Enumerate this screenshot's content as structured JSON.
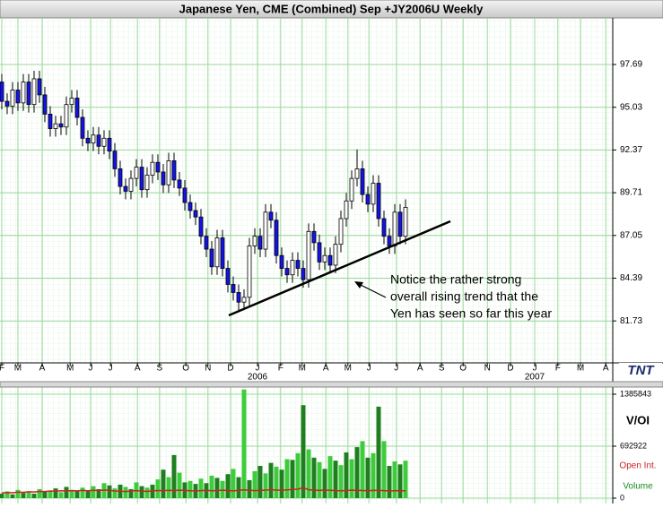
{
  "chart_data": [
    {
      "type": "candlestick",
      "title": "Japanese Yen, CME (Combined) Sep +JY2006U Weekly",
      "x": [
        0,
        1,
        2,
        3,
        4,
        5,
        6,
        7,
        8,
        9,
        10,
        11,
        12,
        13,
        14,
        15,
        16,
        17,
        18,
        19,
        20,
        21,
        22,
        23,
        24,
        25,
        26,
        27,
        28,
        29,
        30,
        31,
        32,
        33,
        34,
        35,
        36,
        37,
        38,
        39,
        40,
        41,
        42,
        43,
        44,
        45,
        46,
        47,
        48,
        49,
        50,
        51,
        52,
        53,
        54,
        55,
        56,
        57,
        58,
        59,
        60,
        61,
        62,
        63,
        64,
        65,
        66,
        67,
        68,
        69,
        70,
        71,
        72,
        73,
        74,
        75
      ],
      "open": [
        96.6,
        95.4,
        95.1,
        96.1,
        95.3,
        96.6,
        95.2,
        96.8,
        95.8,
        94.6,
        93.7,
        94.0,
        93.8,
        95.2,
        95.6,
        94.4,
        93.1,
        92.8,
        93.3,
        92.6,
        93.1,
        92.3,
        91.2,
        90.1,
        89.8,
        90.6,
        91.3,
        89.9,
        90.8,
        91.6,
        91.0,
        90.2,
        91.7,
        90.5,
        90.0,
        89.1,
        88.6,
        88.2,
        87.0,
        86.2,
        85.1,
        86.9,
        85.0,
        84.0,
        83.5,
        82.9,
        83.2,
        86.4,
        87.0,
        86.2,
        88.5,
        88.0,
        85.8,
        85.0,
        84.6,
        85.5,
        85.0,
        84.3,
        87.3,
        86.6,
        85.4,
        85.8,
        85.2,
        86.5,
        88.1,
        89.2,
        90.6,
        91.2,
        89.6,
        89.0,
        90.3,
        88.1,
        87.0,
        86.4,
        88.5,
        87.0
      ],
      "high": [
        97.1,
        95.9,
        96.6,
        96.6,
        97.1,
        97.1,
        97.3,
        97.3,
        96.3,
        95.1,
        94.5,
        94.5,
        95.7,
        96.1,
        96.1,
        94.9,
        93.6,
        93.8,
        93.8,
        93.6,
        93.6,
        92.8,
        91.7,
        90.6,
        91.1,
        91.8,
        91.8,
        91.3,
        92.1,
        92.1,
        91.5,
        92.2,
        92.2,
        91.0,
        90.5,
        89.6,
        89.1,
        88.7,
        87.5,
        86.7,
        87.4,
        87.4,
        85.5,
        84.5,
        84.0,
        83.7,
        86.9,
        87.5,
        87.5,
        89.0,
        89.0,
        88.5,
        86.3,
        85.5,
        86.0,
        86.0,
        85.5,
        87.8,
        87.8,
        87.1,
        86.3,
        86.3,
        87.0,
        88.6,
        89.7,
        91.1,
        92.4,
        91.7,
        90.1,
        90.8,
        90.8,
        88.6,
        87.5,
        89.0,
        89.0,
        89.3
      ],
      "low": [
        94.9,
        94.6,
        94.6,
        94.8,
        94.8,
        94.7,
        94.7,
        95.3,
        94.1,
        93.2,
        93.2,
        93.3,
        93.3,
        94.7,
        93.9,
        92.6,
        92.3,
        92.3,
        92.1,
        92.1,
        91.8,
        90.7,
        89.6,
        89.3,
        89.3,
        90.1,
        89.4,
        89.4,
        90.3,
        90.5,
        89.7,
        89.7,
        90.0,
        89.5,
        88.6,
        88.1,
        87.7,
        86.5,
        85.7,
        84.6,
        84.6,
        84.5,
        83.5,
        83.0,
        82.4,
        82.4,
        82.7,
        85.9,
        85.7,
        85.7,
        87.5,
        85.3,
        84.5,
        84.1,
        84.1,
        84.5,
        83.8,
        83.8,
        86.1,
        84.9,
        84.9,
        84.7,
        84.7,
        86.0,
        87.6,
        88.7,
        90.1,
        89.1,
        88.5,
        88.5,
        87.6,
        86.5,
        85.9,
        85.9,
        86.5,
        86.5
      ],
      "close": [
        95.4,
        95.1,
        96.1,
        95.3,
        96.6,
        95.2,
        96.8,
        95.8,
        94.6,
        93.7,
        94.0,
        93.8,
        95.2,
        95.6,
        94.4,
        93.1,
        92.8,
        93.3,
        92.6,
        93.1,
        92.3,
        91.2,
        90.1,
        89.8,
        90.6,
        91.3,
        89.9,
        90.8,
        91.6,
        91.0,
        90.2,
        91.7,
        90.5,
        90.0,
        89.1,
        88.6,
        88.2,
        87.0,
        86.2,
        85.1,
        86.9,
        85.0,
        84.0,
        83.5,
        82.9,
        83.2,
        86.4,
        87.0,
        86.2,
        88.5,
        88.0,
        85.8,
        85.0,
        84.6,
        85.5,
        85.0,
        84.3,
        87.3,
        86.6,
        85.4,
        85.8,
        85.2,
        86.5,
        88.1,
        89.2,
        90.6,
        91.2,
        89.6,
        89.0,
        90.3,
        88.1,
        87.0,
        86.4,
        88.5,
        87.0,
        88.8
      ],
      "up_color": "#ffffff",
      "down_color": "#1414e6",
      "xlim": [
        -0.33,
        113.5
      ],
      "xticks": [
        {
          "value": 0,
          "label": "F"
        },
        {
          "value": 3,
          "label": "M"
        },
        {
          "value": 7.5,
          "label": "A"
        },
        {
          "value": 12.7,
          "label": "M"
        },
        {
          "value": 16.5,
          "label": "J"
        },
        {
          "value": 20.2,
          "label": "J"
        },
        {
          "value": 25.2,
          "label": "A"
        },
        {
          "value": 29.3,
          "label": "S"
        },
        {
          "value": 34.2,
          "label": "O"
        },
        {
          "value": 38.3,
          "label": "N"
        },
        {
          "value": 42.5,
          "label": "D"
        },
        {
          "value": 47.5,
          "label": "J"
        },
        {
          "value": 51.8,
          "label": "F"
        },
        {
          "value": 55.8,
          "label": "M"
        },
        {
          "value": 60.2,
          "label": "A"
        },
        {
          "value": 64.3,
          "label": "M"
        },
        {
          "value": 68.2,
          "label": "J"
        },
        {
          "value": 73.3,
          "label": "J"
        },
        {
          "value": 77.7,
          "label": "A"
        },
        {
          "value": 81.7,
          "label": "S"
        },
        {
          "value": 85.7,
          "label": "O"
        },
        {
          "value": 90.2,
          "label": "N"
        },
        {
          "value": 94.5,
          "label": "D"
        },
        {
          "value": 99,
          "label": "J"
        },
        {
          "value": 103.3,
          "label": "F"
        },
        {
          "value": 107.5,
          "label": "M"
        },
        {
          "value": 112.2,
          "label": "A"
        }
      ],
      "year_labels": [
        {
          "value": 47.5,
          "label": "2006"
        },
        {
          "value": 99,
          "label": "2007"
        }
      ],
      "ylim": [
        79.12,
        100.59
      ],
      "yticks": [
        81.73,
        84.39,
        87.05,
        89.71,
        92.37,
        95.03,
        97.69
      ],
      "grid": true,
      "annotation": [
        "Notice the rather strong",
        "overall rising trend that the",
        "Yen has seen so far this year"
      ],
      "logo": "TNT"
    },
    {
      "type": "volume",
      "x": [
        0,
        1,
        2,
        3,
        4,
        5,
        6,
        7,
        8,
        9,
        10,
        11,
        12,
        13,
        14,
        15,
        16,
        17,
        18,
        19,
        20,
        21,
        22,
        23,
        24,
        25,
        26,
        27,
        28,
        29,
        30,
        31,
        32,
        33,
        34,
        35,
        36,
        37,
        38,
        39,
        40,
        41,
        42,
        43,
        44,
        45,
        46,
        47,
        48,
        49,
        50,
        51,
        52,
        53,
        54,
        55,
        56,
        57,
        58,
        59,
        60,
        61,
        62,
        63,
        64,
        65,
        66,
        67,
        68,
        69,
        70,
        71,
        72,
        73,
        74,
        75
      ],
      "series": [
        {
          "name": "Volume",
          "colors": [
            "#1f7f1f",
            "#3ccc3c"
          ],
          "color": "#1a8c1a",
          "values": [
            60000,
            90000,
            50000,
            110000,
            70000,
            80000,
            60000,
            120000,
            90000,
            100000,
            130000,
            80000,
            150000,
            110000,
            90000,
            140000,
            100000,
            160000,
            120000,
            200000,
            170000,
            130000,
            180000,
            150000,
            120000,
            210000,
            160000,
            140000,
            180000,
            250000,
            380000,
            280000,
            575000,
            340000,
            210000,
            230000,
            190000,
            260000,
            200000,
            300000,
            270000,
            230000,
            320000,
            390000,
            280000,
            1450000,
            240000,
            360000,
            430000,
            330000,
            470000,
            420000,
            380000,
            520000,
            510000,
            600000,
            1240000,
            650000,
            540000,
            480000,
            390000,
            560000,
            500000,
            440000,
            610000,
            520000,
            680000,
            760000,
            540000,
            600000,
            1220000,
            760000,
            430000,
            490000,
            450000,
            500000
          ]
        },
        {
          "name": "Open Int.",
          "color": "#cc2222",
          "values": [
            70000,
            75000,
            72000,
            80000,
            78000,
            85000,
            82000,
            90000,
            88000,
            95000,
            92000,
            98000,
            96000,
            100000,
            97000,
            103000,
            99000,
            105000,
            101000,
            108000,
            104000,
            96000,
            92000,
            88000,
            95000,
            100000,
            94000,
            90000,
            97000,
            102000,
            98000,
            104000,
            100000,
            106000,
            103000,
            99000,
            95000,
            100000,
            104000,
            98000,
            102000,
            106000,
            101000,
            97000,
            104000,
            110000,
            105000,
            100000,
            103000,
            107000,
            112000,
            108000,
            104000,
            110000,
            115000,
            120000,
            140000,
            112000,
            106000,
            103000,
            108000,
            104000,
            100000,
            98000,
            102000,
            106000,
            104000,
            101000,
            99000,
            103000,
            105000,
            100000,
            96000,
            98000,
            100000,
            97000
          ]
        }
      ],
      "xlim": [
        -0.33,
        113.5
      ],
      "ylim": [
        -71680,
        1481420
      ],
      "yticks": [
        0,
        692922,
        1385843
      ],
      "label": "V/OI"
    }
  ]
}
